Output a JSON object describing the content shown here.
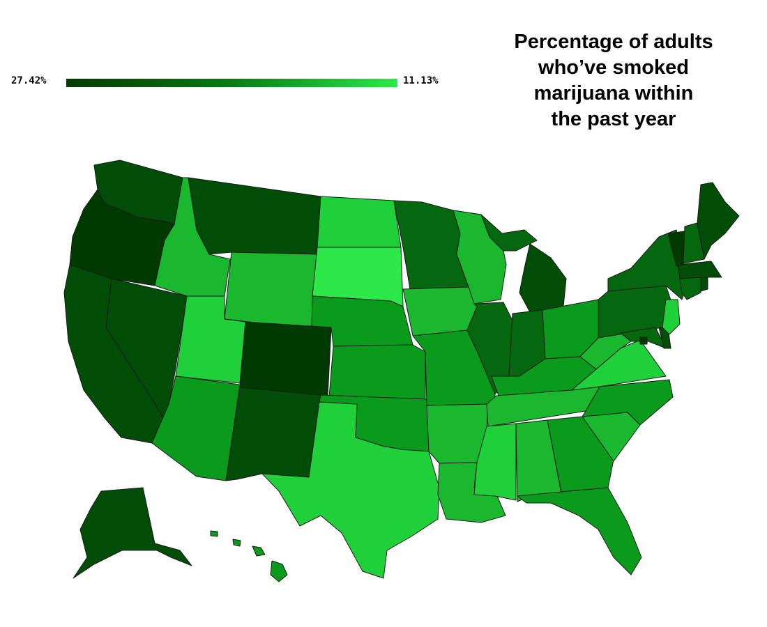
{
  "title": {
    "line1": "Percentage of adults",
    "line2": "who’ve smoked",
    "line3": "marijuana within",
    "line4": "the past year"
  },
  "legend": {
    "min_label": "27.42%",
    "max_label": "11.13%",
    "dark_color": "#003a00",
    "light_color": "#2ee84a"
  },
  "colors": {
    "level1": "#003a00",
    "level2": "#004d08",
    "level3": "#06680e",
    "level4": "#0a9a1c",
    "level5": "#1ab82e",
    "level6": "#20d03a",
    "level7": "#2ee84a"
  }
}
